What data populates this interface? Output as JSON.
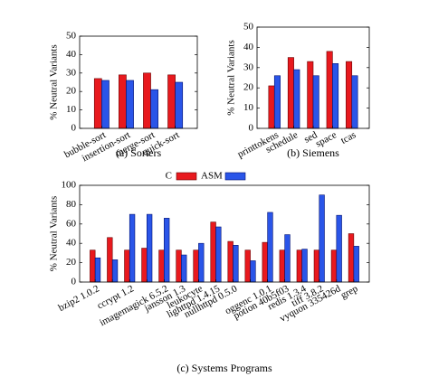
{
  "chart_data": [
    {
      "type": "bar",
      "caption": "(a) Sorters",
      "ylabel": "% Neutral Variants",
      "categories": [
        "bubble-sort",
        "insertion-sort",
        "merge-sort",
        "quick-sort"
      ],
      "series": [
        {
          "color": "#e8191e",
          "values": [
            27,
            29,
            30,
            29
          ]
        },
        {
          "color": "#2a55e8",
          "values": [
            26,
            26,
            21,
            25
          ]
        }
      ],
      "ylim": [
        0,
        50
      ],
      "yticks": [
        0,
        10,
        20,
        30,
        40,
        50
      ]
    },
    {
      "type": "bar",
      "caption": "(b) Siemens",
      "ylabel": "% Neutral Variants",
      "categories": [
        "printtokens",
        "schedule",
        "sed",
        "space",
        "tcas"
      ],
      "series": [
        {
          "color": "#e8191e",
          "values": [
            21,
            35,
            33,
            38,
            33
          ]
        },
        {
          "color": "#2a55e8",
          "values": [
            26,
            29,
            26,
            32,
            26
          ]
        }
      ],
      "ylim": [
        0,
        50
      ],
      "yticks": [
        0,
        10,
        20,
        30,
        40,
        50
      ]
    },
    {
      "type": "bar",
      "caption": "(c) Systems Programs",
      "ylabel": "% Neutral Variants",
      "categories": [
        "bzip2 1.0.2",
        null,
        "ccrypt 1.2",
        null,
        "imagemagick 6.5.2",
        "jansson 1.3",
        "leukocyte",
        "lighttpd 1.4.15",
        "nullhttpd 0.5.0",
        null,
        "oggenc 1.0.1",
        "potion 40b5f03",
        "redis 1.3.4",
        "tiff 3.8.2",
        "vyquon 335426d",
        "grep"
      ],
      "series": [
        {
          "name": "C",
          "color": "#e8191e",
          "values": [
            33,
            46,
            33,
            35,
            33,
            33,
            33,
            62,
            42,
            33,
            41,
            33,
            33,
            33,
            33,
            50
          ]
        },
        {
          "name": "ASM",
          "color": "#2a55e8",
          "values": [
            25,
            23,
            70,
            70,
            66,
            28,
            40,
            57,
            38,
            22,
            72,
            49,
            34,
            90,
            69,
            37
          ]
        }
      ],
      "ylim": [
        0,
        100
      ],
      "yticks": [
        0,
        20,
        40,
        60,
        80,
        100
      ],
      "legend": "top"
    }
  ]
}
